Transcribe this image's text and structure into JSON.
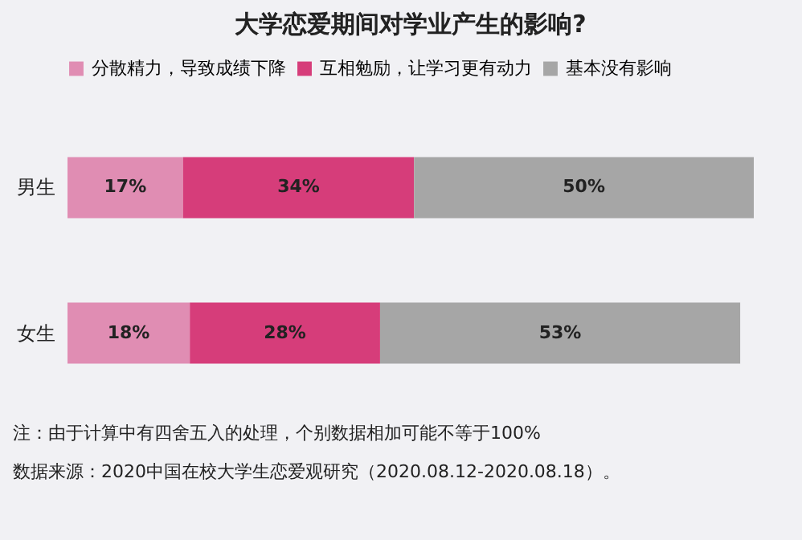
{
  "chart_data": {
    "type": "bar",
    "orientation": "horizontal",
    "stacked": true,
    "title": "大学恋爱期间对学业产生的影响?",
    "categories": [
      "男生",
      "女生"
    ],
    "series": [
      {
        "name": "分散精力，导致成绩下降",
        "color": "#e08db3",
        "values": [
          17,
          18
        ],
        "value_labels": [
          "17%",
          "18%"
        ]
      },
      {
        "name": "互相勉励，让学习更有动力",
        "color": "#d63d7a",
        "values": [
          34,
          28
        ],
        "value_labels": [
          "34%",
          "28%"
        ]
      },
      {
        "name": "基本没有影响",
        "color": "#a6a6a6",
        "values": [
          50,
          53
        ],
        "value_labels": [
          "50%",
          "53%"
        ]
      }
    ],
    "legend": "top",
    "tick_labels": "y",
    "annotations": [
      "注：由于计算中有四舍五入的处理，个别数据相加可能不等于100%",
      "数据来源：2020中国在校大学生恋爱观研究（2020.08.12-2020.08.18）。"
    ]
  }
}
